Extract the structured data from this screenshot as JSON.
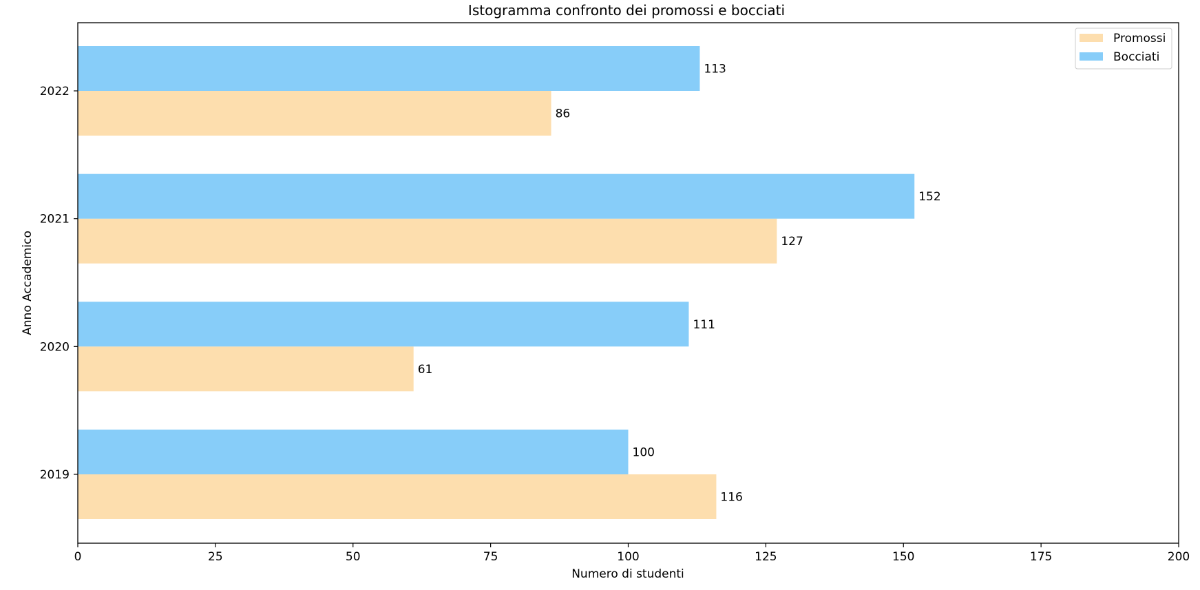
{
  "chart_data": {
    "type": "bar",
    "orientation": "horizontal",
    "title": "Istogramma confronto dei promossi e bocciati",
    "xlabel": "Numero di studenti",
    "ylabel": "Anno Accademico",
    "categories": [
      "2019",
      "2020",
      "2021",
      "2022"
    ],
    "series": [
      {
        "name": "Promossi",
        "values": [
          116,
          61,
          127,
          86
        ],
        "color": "#FDDEAE"
      },
      {
        "name": "Bocciati",
        "values": [
          100,
          111,
          152,
          113
        ],
        "color": "#87CDF9"
      }
    ],
    "xlim": [
      0,
      200
    ],
    "xticks": [
      0,
      25,
      50,
      75,
      100,
      125,
      150,
      175,
      200
    ],
    "grid": false,
    "legend_position": "top-right",
    "data_labels": true
  }
}
